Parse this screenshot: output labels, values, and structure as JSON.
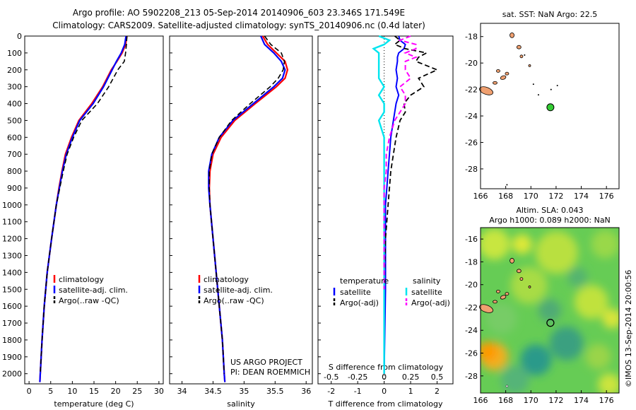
{
  "header": {
    "title": "Argo profile: AO 5902208_213 05-Sep-2014 20140906_603 23.346S 171.549E",
    "subtitle": "Climatology: CARS2009. Satellite-adjusted climatology: synTS_20140906.nc (0.4d later)"
  },
  "colors": {
    "climatology": "#ff0000",
    "satellite": "#0000ff",
    "argo": "#000000",
    "salinity_sat": "#00e5ee",
    "salinity_argo": "#ff00ff",
    "land": "#f0a070",
    "float_marker": "#33cc33"
  },
  "chart_data": [
    {
      "type": "line",
      "panel": "temperature",
      "xlabel": "temperature (deg C)",
      "ylabel": "",
      "xlim": [
        -1,
        31
      ],
      "ylim": [
        2060,
        0
      ],
      "xticks": [
        0,
        5,
        10,
        15,
        20,
        25,
        30
      ],
      "yticks": [
        0,
        100,
        200,
        300,
        400,
        500,
        600,
        700,
        800,
        900,
        1000,
        1100,
        1200,
        1300,
        1400,
        1500,
        1600,
        1700,
        1800,
        1900,
        2000
      ],
      "depth": [
        0,
        50,
        100,
        150,
        200,
        300,
        400,
        500,
        600,
        700,
        800,
        900,
        1000,
        1200,
        1400,
        1600,
        1800,
        2000,
        2050
      ],
      "series": [
        {
          "name": "climatology",
          "values": [
            22.6,
            22.3,
            21.5,
            20.3,
            19.0,
            17.0,
            14.5,
            11.5,
            9.8,
            8.4,
            7.6,
            6.9,
            6.3,
            5.2,
            4.2,
            3.5,
            3.0,
            2.6,
            2.5
          ]
        },
        {
          "name": "satellite-adj. clim.",
          "values": [
            22.4,
            22.1,
            21.3,
            20.2,
            19.2,
            17.2,
            14.8,
            11.7,
            10.0,
            8.6,
            7.7,
            7.0,
            6.3,
            5.2,
            4.2,
            3.5,
            3.0,
            2.6,
            2.5
          ]
        },
        {
          "name": "Argo(..raw -QC)",
          "values": [
            22.6,
            22.5,
            22.3,
            22.0,
            20.5,
            18.4,
            15.8,
            12.2,
            10.3,
            8.8,
            7.9,
            7.1,
            6.3,
            5.2,
            4.2,
            3.5,
            3.0,
            2.6,
            null
          ]
        }
      ],
      "legend": "lower-left"
    },
    {
      "type": "line",
      "panel": "salinity",
      "xlabel": "salinity",
      "ylabel": "",
      "xlim": [
        33.8,
        36.1
      ],
      "ylim": [
        2060,
        0
      ],
      "xticks": [
        34,
        34.5,
        35,
        35.5,
        36
      ],
      "depth": [
        0,
        50,
        100,
        150,
        200,
        250,
        300,
        400,
        500,
        600,
        700,
        800,
        900,
        1000,
        1200,
        1400,
        1600,
        1800,
        2000,
        2050
      ],
      "series": [
        {
          "name": "climatology",
          "values": [
            35.3,
            35.38,
            35.52,
            35.66,
            35.7,
            35.66,
            35.52,
            35.18,
            34.85,
            34.63,
            34.5,
            34.45,
            34.44,
            34.45,
            34.5,
            34.55,
            34.6,
            34.65,
            34.68,
            34.69
          ]
        },
        {
          "name": "satellite-adj. clim.",
          "values": [
            35.27,
            35.33,
            35.48,
            35.6,
            35.66,
            35.62,
            35.48,
            35.15,
            34.82,
            34.6,
            34.48,
            34.43,
            34.43,
            34.45,
            34.5,
            34.55,
            34.6,
            34.65,
            34.68,
            34.69
          ]
        },
        {
          "name": "Argo(..raw -QC)",
          "values": [
            35.33,
            35.43,
            35.6,
            35.65,
            35.63,
            35.55,
            35.42,
            35.1,
            34.8,
            34.6,
            34.48,
            34.44,
            34.44,
            34.45,
            34.5,
            34.55,
            34.6,
            34.65,
            34.68,
            null
          ]
        }
      ],
      "legend": "lower-left"
    },
    {
      "type": "line",
      "panel": "difference",
      "xlabel": "T difference from climatology",
      "xlabel2": "S difference from climatology",
      "ylim": [
        2060,
        0
      ],
      "t_lim": [
        -2.5,
        2.6
      ],
      "t_ticks": [
        -2,
        -1,
        0,
        1,
        2
      ],
      "s_ticks": [
        -0.5,
        -0.25,
        0,
        0.25,
        0.5
      ],
      "s_tick_labels": [
        "-0.5",
        "-0.25",
        "0",
        "0.25",
        "0.5"
      ],
      "depth": [
        0,
        25,
        50,
        75,
        100,
        125,
        150,
        200,
        250,
        300,
        350,
        400,
        450,
        500,
        600,
        700,
        800,
        900,
        1000,
        1200,
        1500,
        2000
      ],
      "series": [
        {
          "name": "temperature satellite",
          "group": "temperature",
          "values": [
            0.55,
            0.6,
            0.8,
            0.75,
            0.55,
            0.5,
            0.5,
            0.45,
            0.5,
            0.45,
            0.55,
            0.45,
            0.4,
            0.35,
            0.25,
            0.2,
            0.15,
            0.1,
            0.05,
            0.05,
            0.05,
            0.0
          ]
        },
        {
          "name": "temperature Argo(-adj)",
          "group": "temperature",
          "values": [
            0.4,
            0.6,
            0.4,
            0.8,
            1.6,
            1.3,
            1.2,
            2.0,
            1.3,
            1.5,
            1.0,
            0.75,
            0.8,
            0.6,
            0.45,
            0.35,
            0.25,
            0.2,
            0.15,
            0.05,
            0.0,
            null
          ]
        },
        {
          "name": "salinity satellite",
          "group": "salinity",
          "values": [
            -0.05,
            0.05,
            0.0,
            -0.1,
            -0.05,
            -0.05,
            -0.05,
            -0.05,
            -0.05,
            0.0,
            -0.05,
            0.0,
            0.0,
            -0.05,
            0.0,
            0.0,
            0.0,
            0.0,
            0.0,
            0.0,
            0.0,
            0.0
          ]
        },
        {
          "name": "salinity Argo(-adj)",
          "group": "salinity",
          "values": [
            0.25,
            0.15,
            0.3,
            0.3,
            0.2,
            0.3,
            0.2,
            0.2,
            0.25,
            0.15,
            0.2,
            0.2,
            0.15,
            0.1,
            0.05,
            0.02,
            0.02,
            0.0,
            0.0,
            0.0,
            0.0,
            null
          ]
        }
      ]
    },
    {
      "type": "scatter",
      "panel": "sst-map",
      "title": "sat. SST: NaN Argo: 22.5",
      "xlim": [
        166,
        177
      ],
      "ylim": [
        -29.5,
        -17
      ],
      "xticks": [
        166,
        168,
        170,
        172,
        174,
        176
      ],
      "yticks": [
        -18,
        -20,
        -22,
        -24,
        -26,
        -28
      ],
      "float_position": {
        "lon": 171.549,
        "lat": -23.346
      }
    },
    {
      "type": "heatmap",
      "panel": "sla-map",
      "title": "Altim. SLA: 0.043",
      "subtitle": "Argo h1000: 0.089 h2000: NaN",
      "xlim": [
        166,
        177
      ],
      "ylim": [
        -29.5,
        -15
      ],
      "xticks": [
        166,
        168,
        170,
        172,
        174,
        176
      ],
      "yticks": [
        -16,
        -18,
        -20,
        -22,
        -24,
        -26,
        -28
      ],
      "float_position": {
        "lon": 171.549,
        "lat": -23.346
      }
    }
  ],
  "legends": {
    "profile": [
      "climatology",
      "satellite-adj. clim.",
      "Argo(..raw -QC)"
    ],
    "diff_headers": [
      "temperature",
      "salinity"
    ],
    "diff_left": [
      "satellite",
      "Argo(-adj)"
    ],
    "diff_right": [
      "satellite",
      "Argo(-adj)"
    ]
  },
  "credits": {
    "line1": "US ARGO PROJECT",
    "line2": "PI: DEAN ROEMMICH"
  },
  "footer": {
    "stamp": "©IMOS 13-Sep-2014 20:00:56"
  }
}
